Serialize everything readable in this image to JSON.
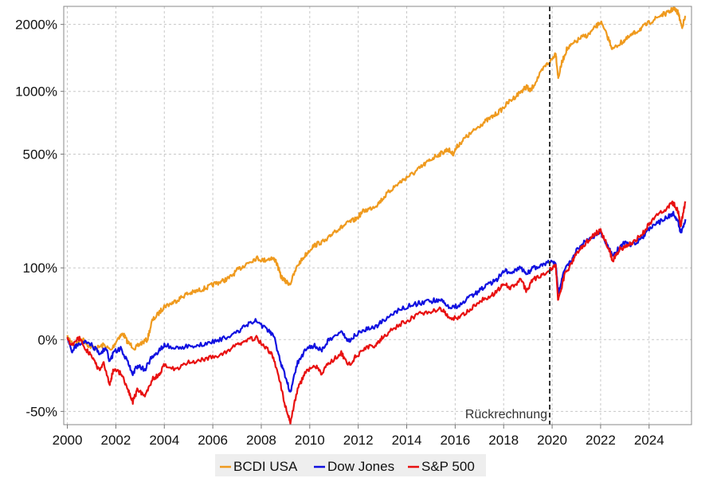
{
  "chart_data": {
    "type": "line",
    "title": "",
    "xlabel": "",
    "ylabel": "",
    "y_scale": "log(1+r)",
    "xlim": [
      1999.85,
      2025.75
    ],
    "ylim": [
      -0.56,
      24.0
    ],
    "y_ticks": [
      -0.5,
      0,
      1,
      5,
      10,
      20
    ],
    "y_tick_labels": [
      "-50%",
      "0%",
      "100%",
      "500%",
      "1000%",
      "2000%"
    ],
    "x_ticks": [
      2000,
      2002,
      2004,
      2006,
      2008,
      2010,
      2012,
      2014,
      2016,
      2018,
      2020,
      2022,
      2024
    ],
    "x_tick_labels": [
      "2000",
      "2002",
      "2004",
      "2006",
      "2008",
      "2010",
      "2012",
      "2014",
      "2016",
      "2018",
      "2020",
      "2022",
      "2024"
    ],
    "grid": true,
    "legend_position": "bottom-center",
    "annotation": {
      "text": "Rückrechnung",
      "x": 2019.9
    },
    "series": [
      {
        "name": "BCDI USA",
        "color": "#ef9a1e",
        "points": [
          [
            2000.0,
            0.02
          ],
          [
            2000.3,
            -0.05
          ],
          [
            2000.6,
            0.01
          ],
          [
            2000.9,
            -0.06
          ],
          [
            2001.2,
            -0.08
          ],
          [
            2001.5,
            -0.05
          ],
          [
            2001.8,
            -0.1
          ],
          [
            2002.1,
            0.02
          ],
          [
            2002.3,
            0.06
          ],
          [
            2002.5,
            -0.03
          ],
          [
            2002.8,
            -0.08
          ],
          [
            2003.0,
            -0.04
          ],
          [
            2003.3,
            0.0
          ],
          [
            2003.5,
            0.2
          ],
          [
            2003.8,
            0.3
          ],
          [
            2004.0,
            0.38
          ],
          [
            2004.3,
            0.42
          ],
          [
            2004.6,
            0.48
          ],
          [
            2004.9,
            0.55
          ],
          [
            2005.2,
            0.58
          ],
          [
            2005.5,
            0.62
          ],
          [
            2005.8,
            0.66
          ],
          [
            2006.1,
            0.72
          ],
          [
            2006.4,
            0.76
          ],
          [
            2006.7,
            0.82
          ],
          [
            2007.0,
            0.95
          ],
          [
            2007.3,
            1.05
          ],
          [
            2007.5,
            1.12
          ],
          [
            2007.8,
            1.2
          ],
          [
            2008.1,
            1.15
          ],
          [
            2008.4,
            1.2
          ],
          [
            2008.6,
            1.15
          ],
          [
            2008.8,
            0.85
          ],
          [
            2009.0,
            0.75
          ],
          [
            2009.2,
            0.72
          ],
          [
            2009.5,
            1.05
          ],
          [
            2009.8,
            1.25
          ],
          [
            2010.1,
            1.45
          ],
          [
            2010.4,
            1.55
          ],
          [
            2010.7,
            1.6
          ],
          [
            2011.0,
            1.85
          ],
          [
            2011.3,
            1.95
          ],
          [
            2011.6,
            2.1
          ],
          [
            2011.9,
            2.2
          ],
          [
            2012.2,
            2.45
          ],
          [
            2012.5,
            2.55
          ],
          [
            2012.8,
            2.7
          ],
          [
            2013.1,
            3.0
          ],
          [
            2013.4,
            3.3
          ],
          [
            2013.7,
            3.55
          ],
          [
            2014.0,
            3.8
          ],
          [
            2014.3,
            4.0
          ],
          [
            2014.6,
            4.3
          ],
          [
            2014.9,
            4.6
          ],
          [
            2015.2,
            4.9
          ],
          [
            2015.5,
            5.1
          ],
          [
            2015.7,
            5.3
          ],
          [
            2015.9,
            5.0
          ],
          [
            2016.1,
            5.5
          ],
          [
            2016.4,
            6.0
          ],
          [
            2016.7,
            6.4
          ],
          [
            2017.0,
            6.9
          ],
          [
            2017.3,
            7.3
          ],
          [
            2017.6,
            7.7
          ],
          [
            2017.9,
            8.2
          ],
          [
            2018.2,
            8.9
          ],
          [
            2018.5,
            9.5
          ],
          [
            2018.8,
            10.2
          ],
          [
            2018.95,
            10.5
          ],
          [
            2019.1,
            10.0
          ],
          [
            2019.4,
            11.5
          ],
          [
            2019.7,
            13.0
          ],
          [
            2020.0,
            14.0
          ],
          [
            2020.15,
            15.0
          ],
          [
            2020.25,
            11.5
          ],
          [
            2020.4,
            13.5
          ],
          [
            2020.6,
            15.5
          ],
          [
            2020.9,
            16.5
          ],
          [
            2021.2,
            17.5
          ],
          [
            2021.5,
            18.0
          ],
          [
            2021.8,
            19.5
          ],
          [
            2022.0,
            20.5
          ],
          [
            2022.3,
            17.5
          ],
          [
            2022.5,
            15.5
          ],
          [
            2022.8,
            16.5
          ],
          [
            2023.0,
            17.0
          ],
          [
            2023.3,
            18.0
          ],
          [
            2023.6,
            19.0
          ],
          [
            2023.9,
            20.0
          ],
          [
            2024.2,
            21.0
          ],
          [
            2024.5,
            22.0
          ],
          [
            2024.8,
            22.5
          ],
          [
            2025.0,
            23.5
          ],
          [
            2025.2,
            22.5
          ],
          [
            2025.35,
            19.5
          ],
          [
            2025.5,
            21.5
          ]
        ]
      },
      {
        "name": "Dow Jones",
        "color": "#1010e0",
        "points": [
          [
            2000.0,
            0.0
          ],
          [
            2000.2,
            -0.1
          ],
          [
            2000.4,
            -0.05
          ],
          [
            2000.7,
            -0.02
          ],
          [
            2001.0,
            -0.05
          ],
          [
            2001.3,
            -0.12
          ],
          [
            2001.6,
            -0.08
          ],
          [
            2001.75,
            -0.2
          ],
          [
            2001.9,
            -0.12
          ],
          [
            2002.2,
            -0.08
          ],
          [
            2002.5,
            -0.2
          ],
          [
            2002.7,
            -0.28
          ],
          [
            2002.9,
            -0.22
          ],
          [
            2003.2,
            -0.25
          ],
          [
            2003.5,
            -0.15
          ],
          [
            2003.8,
            -0.1
          ],
          [
            2004.0,
            -0.05
          ],
          [
            2004.5,
            -0.08
          ],
          [
            2005.0,
            -0.06
          ],
          [
            2005.5,
            -0.05
          ],
          [
            2006.0,
            -0.02
          ],
          [
            2006.5,
            0.02
          ],
          [
            2007.0,
            0.08
          ],
          [
            2007.4,
            0.15
          ],
          [
            2007.8,
            0.2
          ],
          [
            2008.2,
            0.1
          ],
          [
            2008.5,
            0.05
          ],
          [
            2008.8,
            -0.2
          ],
          [
            2009.0,
            -0.3
          ],
          [
            2009.2,
            -0.4
          ],
          [
            2009.5,
            -0.2
          ],
          [
            2009.8,
            -0.1
          ],
          [
            2010.2,
            -0.05
          ],
          [
            2010.5,
            -0.1
          ],
          [
            2010.8,
            0.0
          ],
          [
            2011.3,
            0.08
          ],
          [
            2011.6,
            -0.02
          ],
          [
            2011.9,
            0.05
          ],
          [
            2012.3,
            0.1
          ],
          [
            2012.7,
            0.12
          ],
          [
            2013.0,
            0.2
          ],
          [
            2013.5,
            0.3
          ],
          [
            2014.0,
            0.38
          ],
          [
            2014.5,
            0.42
          ],
          [
            2015.0,
            0.45
          ],
          [
            2015.4,
            0.48
          ],
          [
            2015.7,
            0.38
          ],
          [
            2016.1,
            0.38
          ],
          [
            2016.5,
            0.48
          ],
          [
            2016.9,
            0.58
          ],
          [
            2017.3,
            0.68
          ],
          [
            2017.7,
            0.78
          ],
          [
            2018.0,
            0.95
          ],
          [
            2018.3,
            0.9
          ],
          [
            2018.7,
            1.0
          ],
          [
            2018.95,
            0.88
          ],
          [
            2019.2,
            1.0
          ],
          [
            2019.6,
            1.05
          ],
          [
            2020.0,
            1.15
          ],
          [
            2020.15,
            1.1
          ],
          [
            2020.25,
            0.55
          ],
          [
            2020.5,
            0.95
          ],
          [
            2020.8,
            1.15
          ],
          [
            2021.0,
            1.35
          ],
          [
            2021.4,
            1.6
          ],
          [
            2021.8,
            1.75
          ],
          [
            2022.0,
            1.8
          ],
          [
            2022.3,
            1.45
          ],
          [
            2022.5,
            1.25
          ],
          [
            2022.8,
            1.45
          ],
          [
            2023.0,
            1.55
          ],
          [
            2023.3,
            1.5
          ],
          [
            2023.7,
            1.65
          ],
          [
            2024.0,
            1.9
          ],
          [
            2024.4,
            2.1
          ],
          [
            2024.8,
            2.3
          ],
          [
            2025.0,
            2.4
          ],
          [
            2025.2,
            2.15
          ],
          [
            2025.3,
            1.8
          ],
          [
            2025.5,
            2.2
          ]
        ]
      },
      {
        "name": "S&P 500",
        "color": "#e81010",
        "points": [
          [
            2000.0,
            0.0
          ],
          [
            2000.2,
            -0.05
          ],
          [
            2000.5,
            0.02
          ],
          [
            2000.8,
            -0.1
          ],
          [
            2001.1,
            -0.18
          ],
          [
            2001.3,
            -0.25
          ],
          [
            2001.5,
            -0.2
          ],
          [
            2001.75,
            -0.35
          ],
          [
            2001.9,
            -0.25
          ],
          [
            2002.2,
            -0.28
          ],
          [
            2002.5,
            -0.38
          ],
          [
            2002.7,
            -0.45
          ],
          [
            2002.9,
            -0.38
          ],
          [
            2003.2,
            -0.42
          ],
          [
            2003.5,
            -0.32
          ],
          [
            2003.8,
            -0.28
          ],
          [
            2004.0,
            -0.22
          ],
          [
            2004.5,
            -0.25
          ],
          [
            2005.0,
            -0.2
          ],
          [
            2005.5,
            -0.18
          ],
          [
            2006.0,
            -0.15
          ],
          [
            2006.5,
            -0.12
          ],
          [
            2007.0,
            -0.05
          ],
          [
            2007.4,
            0.0
          ],
          [
            2007.8,
            0.02
          ],
          [
            2008.2,
            -0.08
          ],
          [
            2008.5,
            -0.15
          ],
          [
            2008.8,
            -0.35
          ],
          [
            2009.0,
            -0.48
          ],
          [
            2009.2,
            -0.55
          ],
          [
            2009.5,
            -0.38
          ],
          [
            2009.8,
            -0.28
          ],
          [
            2010.2,
            -0.22
          ],
          [
            2010.5,
            -0.28
          ],
          [
            2010.8,
            -0.2
          ],
          [
            2011.3,
            -0.12
          ],
          [
            2011.6,
            -0.22
          ],
          [
            2011.9,
            -0.15
          ],
          [
            2012.3,
            -0.08
          ],
          [
            2012.7,
            -0.05
          ],
          [
            2013.0,
            0.02
          ],
          [
            2013.5,
            0.12
          ],
          [
            2014.0,
            0.2
          ],
          [
            2014.5,
            0.28
          ],
          [
            2015.0,
            0.32
          ],
          [
            2015.4,
            0.35
          ],
          [
            2015.7,
            0.25
          ],
          [
            2016.1,
            0.22
          ],
          [
            2016.5,
            0.32
          ],
          [
            2016.9,
            0.42
          ],
          [
            2017.3,
            0.5
          ],
          [
            2017.7,
            0.58
          ],
          [
            2018.0,
            0.72
          ],
          [
            2018.3,
            0.65
          ],
          [
            2018.7,
            0.78
          ],
          [
            2018.95,
            0.6
          ],
          [
            2019.2,
            0.78
          ],
          [
            2019.6,
            0.88
          ],
          [
            2020.0,
            1.0
          ],
          [
            2020.15,
            1.02
          ],
          [
            2020.25,
            0.45
          ],
          [
            2020.5,
            0.85
          ],
          [
            2020.8,
            1.1
          ],
          [
            2021.0,
            1.3
          ],
          [
            2021.4,
            1.55
          ],
          [
            2021.8,
            1.8
          ],
          [
            2022.0,
            1.85
          ],
          [
            2022.3,
            1.45
          ],
          [
            2022.5,
            1.15
          ],
          [
            2022.8,
            1.4
          ],
          [
            2023.0,
            1.45
          ],
          [
            2023.3,
            1.55
          ],
          [
            2023.7,
            1.75
          ],
          [
            2024.0,
            2.05
          ],
          [
            2024.4,
            2.4
          ],
          [
            2024.8,
            2.6
          ],
          [
            2025.0,
            2.75
          ],
          [
            2025.2,
            2.45
          ],
          [
            2025.3,
            2.0
          ],
          [
            2025.5,
            2.8
          ]
        ]
      }
    ]
  }
}
